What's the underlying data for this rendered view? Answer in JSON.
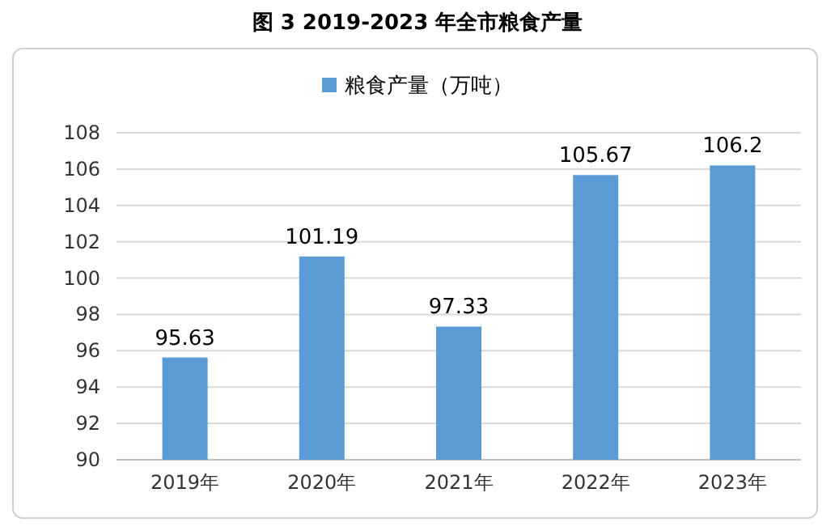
{
  "chart_data": {
    "type": "bar",
    "title": "图 3   2019-2023 年全市粮食产量",
    "categories": [
      "2019年",
      "2020年",
      "2021年",
      "2022年",
      "2023年"
    ],
    "series": [
      {
        "name": "粮食产量（万吨）",
        "color": "#5b9bd5",
        "values": [
          95.63,
          101.19,
          97.33,
          105.67,
          106.2
        ]
      }
    ],
    "ylim": [
      90,
      108
    ],
    "yticks": [
      90,
      92,
      94,
      96,
      98,
      100,
      102,
      104,
      106,
      108
    ],
    "grid": "y",
    "legend": "top",
    "data_labels": true
  }
}
